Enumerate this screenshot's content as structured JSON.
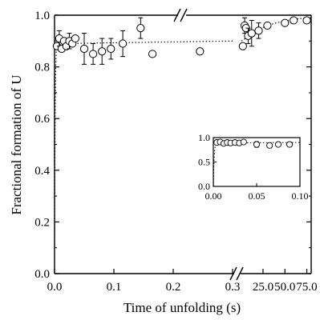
{
  "chart_data": [
    {
      "type": "scatter",
      "ylabel": "Fractional formation of U",
      "xlabel": "Time of unfolding (s)",
      "ylim": [
        0.0,
        1.0
      ],
      "yticks": [
        "0.0",
        "0.2",
        "0.4",
        "0.6",
        "0.8",
        "1.0"
      ],
      "x_axis_broken": true,
      "segments": [
        {
          "xlim": [
            0.0,
            0.3
          ],
          "xticks": [
            "0.0",
            "0.1",
            "0.2",
            "0.3"
          ],
          "points": [
            {
              "x": 0.004,
              "y": 0.88
            },
            {
              "x": 0.008,
              "y": 0.91,
              "err": 0.03
            },
            {
              "x": 0.012,
              "y": 0.87
            },
            {
              "x": 0.016,
              "y": 0.9
            },
            {
              "x": 0.02,
              "y": 0.88
            },
            {
              "x": 0.025,
              "y": 0.9,
              "err": 0.03
            },
            {
              "x": 0.03,
              "y": 0.89
            },
            {
              "x": 0.035,
              "y": 0.91
            },
            {
              "x": 0.05,
              "y": 0.87,
              "err": 0.06
            },
            {
              "x": 0.065,
              "y": 0.85,
              "err": 0.04
            },
            {
              "x": 0.08,
              "y": 0.86,
              "err": 0.05
            },
            {
              "x": 0.095,
              "y": 0.87,
              "err": 0.04
            },
            {
              "x": 0.115,
              "y": 0.89,
              "err": 0.05
            },
            {
              "x": 0.145,
              "y": 0.95,
              "err": 0.04
            },
            {
              "x": 0.165,
              "y": 0.85
            },
            {
              "x": 0.245,
              "y": 0.86
            }
          ],
          "fit": [
            {
              "x": 0.0,
              "y": 0.0
            },
            {
              "x": 0.0003,
              "y": 0.24
            },
            {
              "x": 0.0006,
              "y": 0.43
            },
            {
              "x": 0.001,
              "y": 0.6
            },
            {
              "x": 0.0015,
              "y": 0.73
            },
            {
              "x": 0.002,
              "y": 0.8
            },
            {
              "x": 0.003,
              "y": 0.86
            },
            {
              "x": 0.004,
              "y": 0.88
            },
            {
              "x": 0.006,
              "y": 0.89
            },
            {
              "x": 0.01,
              "y": 0.89
            },
            {
              "x": 0.3,
              "y": 0.9
            }
          ]
        },
        {
          "xlim": [
            0.3,
            80
          ],
          "xticks": [
            "25.0",
            "50.0",
            "75.0"
          ],
          "points": [
            {
              "x": 2.0,
              "y": 0.88
            },
            {
              "x": 4.0,
              "y": 0.96,
              "err": 0.03
            },
            {
              "x": 5.5,
              "y": 0.95
            },
            {
              "x": 8.0,
              "y": 0.92,
              "err": 0.03
            },
            {
              "x": 12.0,
              "y": 0.93,
              "err": 0.05
            },
            {
              "x": 20.0,
              "y": 0.94,
              "err": 0.03
            },
            {
              "x": 30.0,
              "y": 0.96
            },
            {
              "x": 50.0,
              "y": 0.97
            },
            {
              "x": 60.0,
              "y": 0.98
            },
            {
              "x": 75.0,
              "y": 0.98
            }
          ],
          "fit": [
            {
              "x": 0.3,
              "y": 0.9
            },
            {
              "x": 5,
              "y": 0.91
            },
            {
              "x": 10,
              "y": 0.925
            },
            {
              "x": 15,
              "y": 0.935
            },
            {
              "x": 20,
              "y": 0.945
            },
            {
              "x": 30,
              "y": 0.96
            },
            {
              "x": 40,
              "y": 0.97
            },
            {
              "x": 50,
              "y": 0.978
            },
            {
              "x": 60,
              "y": 0.984
            },
            {
              "x": 70,
              "y": 0.988
            },
            {
              "x": 80,
              "y": 0.99
            }
          ]
        }
      ]
    },
    {
      "type": "scatter",
      "inset": true,
      "xlim": [
        0.0,
        0.1
      ],
      "ylim": [
        0.0,
        1.0
      ],
      "xticks": [
        "0.00",
        "0.05",
        "0.10"
      ],
      "yticks": [
        "0.0",
        "0.5",
        "1.0"
      ],
      "points": [
        {
          "x": 0.004,
          "y": 0.9
        },
        {
          "x": 0.008,
          "y": 0.91,
          "err": 0.03
        },
        {
          "x": 0.012,
          "y": 0.88
        },
        {
          "x": 0.016,
          "y": 0.9
        },
        {
          "x": 0.02,
          "y": 0.89
        },
        {
          "x": 0.025,
          "y": 0.9,
          "err": 0.03
        },
        {
          "x": 0.03,
          "y": 0.89
        },
        {
          "x": 0.035,
          "y": 0.91
        },
        {
          "x": 0.05,
          "y": 0.86,
          "err": 0.06
        },
        {
          "x": 0.065,
          "y": 0.84,
          "err": 0.05
        },
        {
          "x": 0.075,
          "y": 0.86
        },
        {
          "x": 0.088,
          "y": 0.86,
          "err": 0.05
        }
      ],
      "fit": [
        {
          "x": 0.0,
          "y": 0.0
        },
        {
          "x": 0.0005,
          "y": 0.36
        },
        {
          "x": 0.001,
          "y": 0.6
        },
        {
          "x": 0.0015,
          "y": 0.73
        },
        {
          "x": 0.002,
          "y": 0.8
        },
        {
          "x": 0.003,
          "y": 0.86
        },
        {
          "x": 0.004,
          "y": 0.88
        },
        {
          "x": 0.006,
          "y": 0.89
        },
        {
          "x": 0.1,
          "y": 0.9
        }
      ]
    }
  ]
}
